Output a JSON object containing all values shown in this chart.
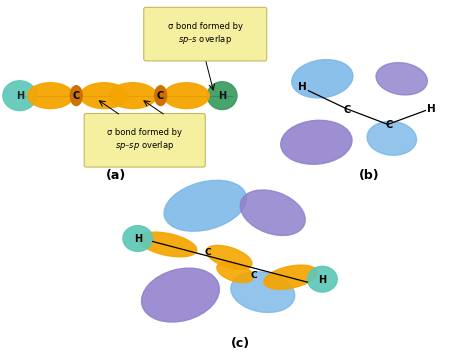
{
  "bg_color": "#ffffff",
  "label_a": "(a)",
  "label_b": "(b)",
  "label_c": "(c)",
  "orange": "#F5A500",
  "dark_orange": "#CC7000",
  "green_left": "#5EC8B8",
  "green_right": "#3A9A60",
  "blue": "#7AB8E8",
  "purple": "#9080CC",
  "teal": "#5EC8B8",
  "annotation_bg": "#F5EFA0",
  "annotation_border": "#C8B860"
}
